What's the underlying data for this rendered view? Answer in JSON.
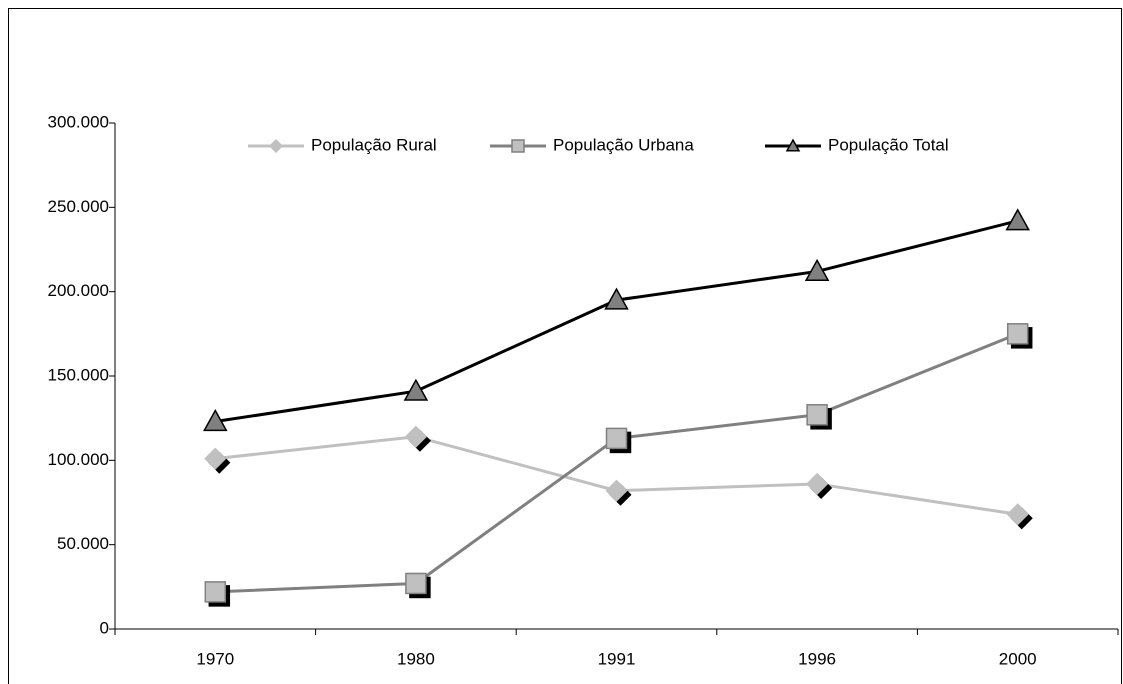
{
  "chart_data": {
    "type": "line",
    "categories": [
      "1970",
      "1980",
      "1991",
      "1996",
      "2000"
    ],
    "series": [
      {
        "name": "População Rural",
        "color": "#c0c0c0",
        "marker": "diamond",
        "values": [
          101000,
          114000,
          82000,
          86000,
          68000
        ]
      },
      {
        "name": "População Urbana",
        "color": "#808080",
        "marker": "square",
        "values": [
          22000,
          27000,
          113000,
          127000,
          175000
        ]
      },
      {
        "name": "População Total",
        "color": "#000000",
        "marker": "triangle",
        "values": [
          123000,
          141000,
          195000,
          212000,
          242000
        ]
      }
    ],
    "ylim": [
      0,
      300000
    ],
    "yticks": [
      0,
      {
        "value": 50000,
        "label": "50.000"
      },
      {
        "value": 100000,
        "label": "100.000"
      },
      {
        "value": 150000,
        "label": "150.000"
      },
      {
        "value": 200000,
        "label": "200.000"
      },
      {
        "value": 250000,
        "label": "250.000"
      },
      {
        "value": 300000,
        "label": "300.000"
      }
    ],
    "grid": false,
    "legend": "top"
  }
}
